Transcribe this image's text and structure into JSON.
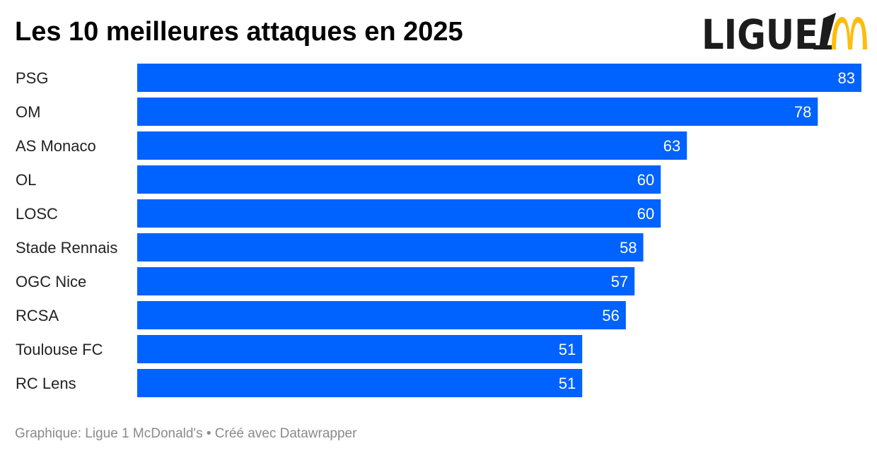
{
  "chart_data": {
    "type": "bar",
    "orientation": "horizontal",
    "title": "Les 10 meilleures attaques en 2025",
    "categories": [
      "PSG",
      "OM",
      "AS Monaco",
      "OL",
      "LOSC",
      "Stade Rennais",
      "OGC Nice",
      "RCSA",
      "Toulouse FC",
      "RC Lens"
    ],
    "values": [
      83,
      78,
      63,
      60,
      60,
      58,
      57,
      56,
      51,
      51
    ],
    "xlim": [
      0,
      83
    ],
    "grid": false,
    "data_labels": true,
    "bar_color": "#0062ff"
  },
  "logo": {
    "text": "LIGUE 1",
    "sponsor": "McDonald's arches",
    "sponsor_color": "#ffbc0d"
  },
  "footer": "Graphique: Ligue 1 McDonald's • Créé avec Datawrapper"
}
